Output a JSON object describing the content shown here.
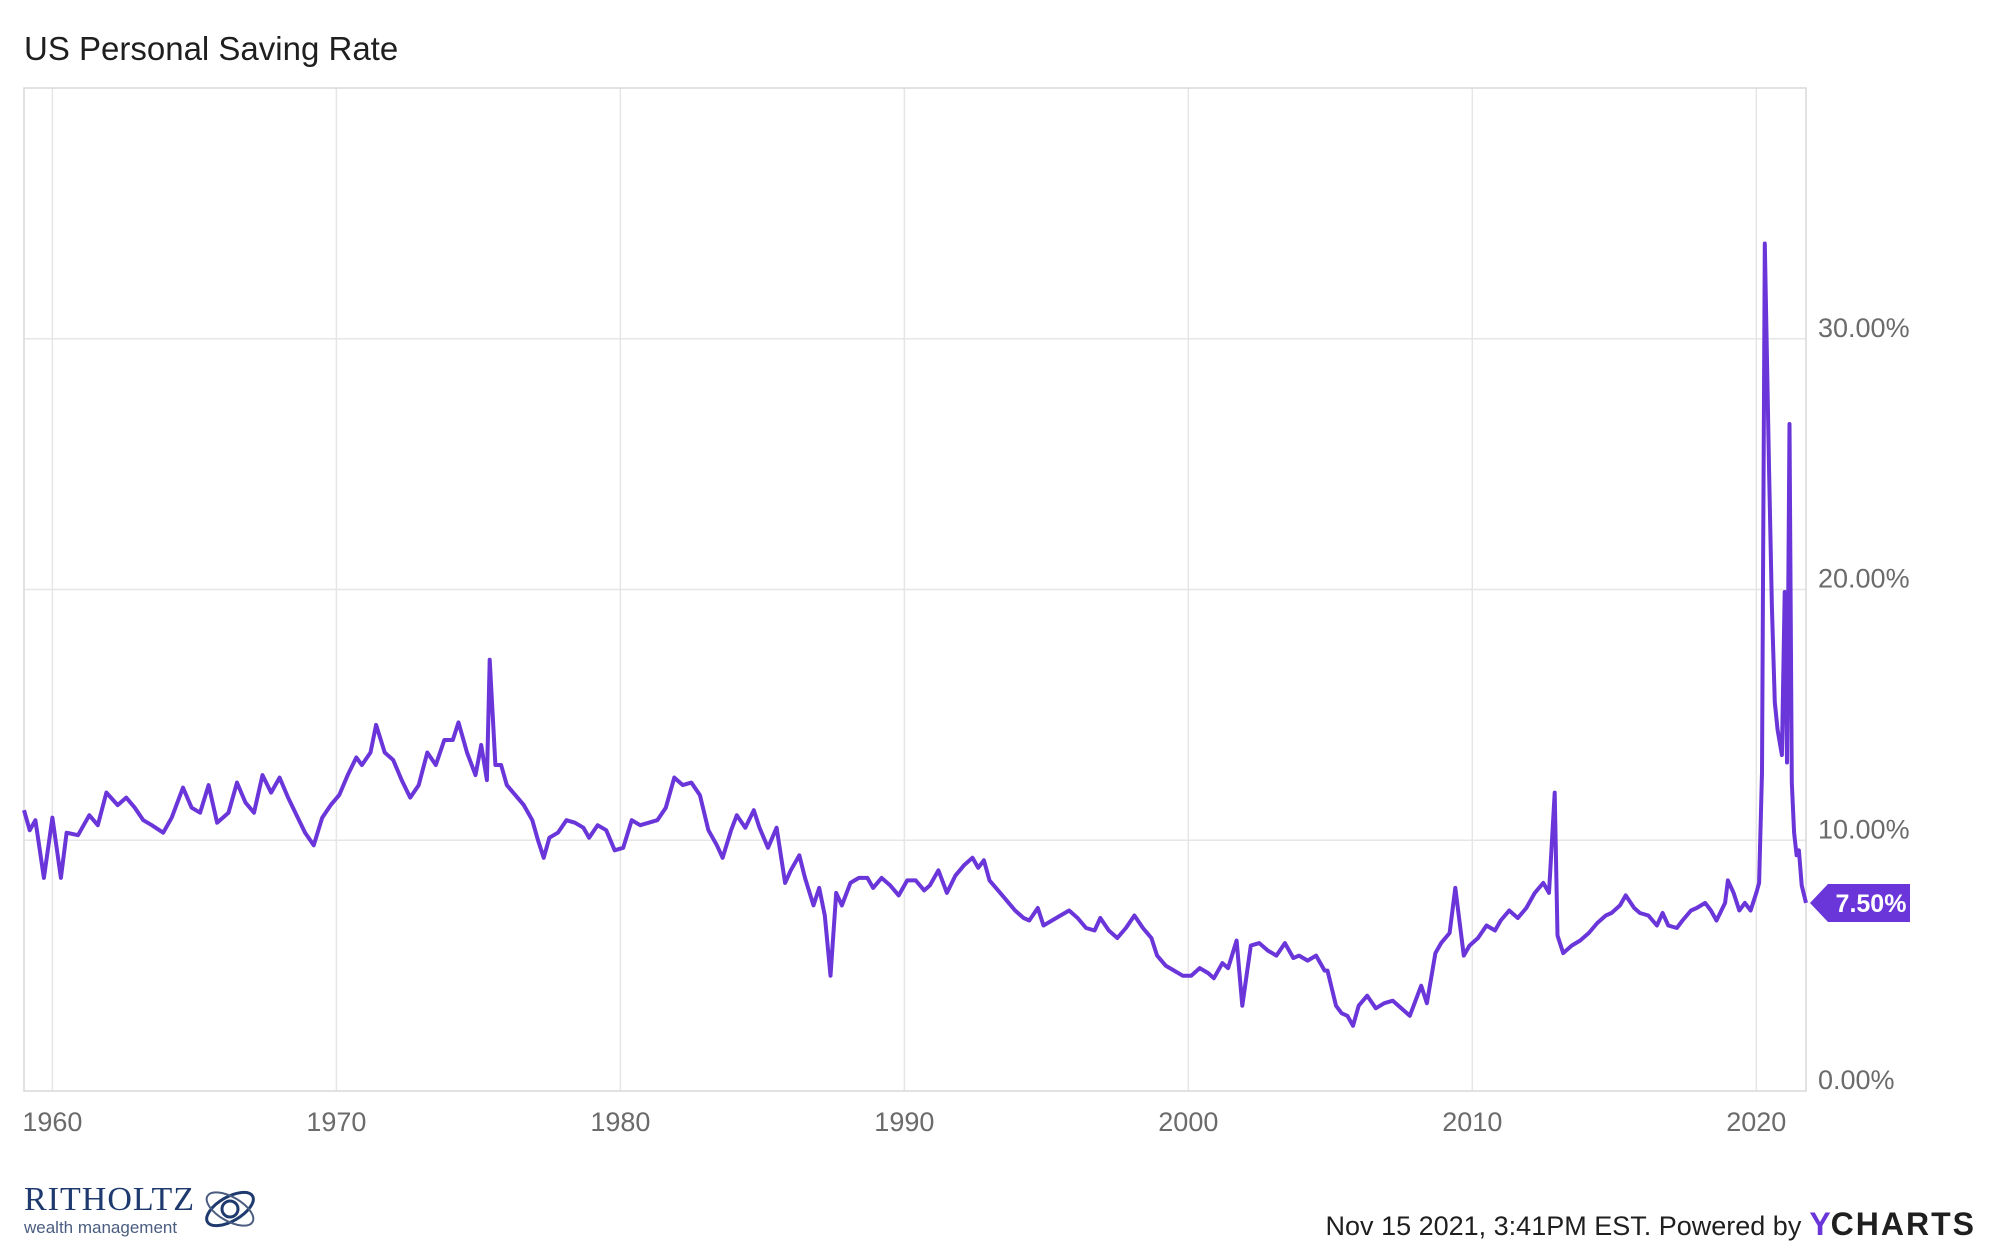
{
  "title": "US Personal Saving Rate",
  "footer": {
    "timestamp": "Nov 15 2021, 3:41PM EST. Powered by",
    "brand_y": "Y",
    "brand_rest": "CHARTS",
    "logo_name": "RITHOLTZ",
    "logo_sub": "wealth management"
  },
  "colors": {
    "line": "#6a35d9",
    "grid": "#e6e6e6",
    "frame": "#d9d9d9"
  },
  "chart_data": {
    "type": "line",
    "title": "US Personal Saving Rate",
    "xlabel": "",
    "ylabel": "",
    "xlim": [
      1959.0,
      2021.75
    ],
    "ylim": [
      0,
      40
    ],
    "x_ticks": [
      {
        "value": 1960,
        "label": "1960"
      },
      {
        "value": 1970,
        "label": "1970"
      },
      {
        "value": 1980,
        "label": "1980"
      },
      {
        "value": 1990,
        "label": "1990"
      },
      {
        "value": 2000,
        "label": "2000"
      },
      {
        "value": 2010,
        "label": "2010"
      },
      {
        "value": 2020,
        "label": "2020"
      }
    ],
    "y_ticks": [
      {
        "value": 0,
        "label": "0.00%"
      },
      {
        "value": 10,
        "label": "10.00%"
      },
      {
        "value": 20,
        "label": "20.00%"
      },
      {
        "value": 30,
        "label": "30.00%"
      }
    ],
    "grid": true,
    "last_value_label": "7.50%",
    "series": [
      {
        "values": [
          [
            1959.0,
            11.2
          ],
          [
            1959.2,
            10.4
          ],
          [
            1959.4,
            10.8
          ],
          [
            1959.7,
            8.5
          ],
          [
            1960.0,
            10.9
          ],
          [
            1960.3,
            8.5
          ],
          [
            1960.5,
            10.3
          ],
          [
            1960.9,
            10.2
          ],
          [
            1961.3,
            11.0
          ],
          [
            1961.6,
            10.6
          ],
          [
            1961.9,
            11.9
          ],
          [
            1962.3,
            11.4
          ],
          [
            1962.6,
            11.7
          ],
          [
            1962.9,
            11.3
          ],
          [
            1963.2,
            10.8
          ],
          [
            1963.5,
            10.6
          ],
          [
            1963.9,
            10.3
          ],
          [
            1964.2,
            10.9
          ],
          [
            1964.6,
            12.1
          ],
          [
            1964.9,
            11.3
          ],
          [
            1965.2,
            11.1
          ],
          [
            1965.5,
            12.2
          ],
          [
            1965.8,
            10.7
          ],
          [
            1966.2,
            11.1
          ],
          [
            1966.5,
            12.3
          ],
          [
            1966.8,
            11.5
          ],
          [
            1967.1,
            11.1
          ],
          [
            1967.4,
            12.6
          ],
          [
            1967.7,
            11.9
          ],
          [
            1968.0,
            12.5
          ],
          [
            1968.3,
            11.7
          ],
          [
            1968.6,
            11.0
          ],
          [
            1968.9,
            10.3
          ],
          [
            1969.2,
            9.8
          ],
          [
            1969.5,
            10.9
          ],
          [
            1969.8,
            11.4
          ],
          [
            1970.1,
            11.8
          ],
          [
            1970.4,
            12.6
          ],
          [
            1970.7,
            13.3
          ],
          [
            1970.9,
            13.0
          ],
          [
            1971.2,
            13.5
          ],
          [
            1971.4,
            14.6
          ],
          [
            1971.7,
            13.5
          ],
          [
            1972.0,
            13.2
          ],
          [
            1972.3,
            12.4
          ],
          [
            1972.6,
            11.7
          ],
          [
            1972.9,
            12.2
          ],
          [
            1973.2,
            13.5
          ],
          [
            1973.5,
            13.0
          ],
          [
            1973.8,
            14.0
          ],
          [
            1974.1,
            14.0
          ],
          [
            1974.3,
            14.7
          ],
          [
            1974.6,
            13.5
          ],
          [
            1974.9,
            12.6
          ],
          [
            1975.1,
            13.8
          ],
          [
            1975.3,
            12.4
          ],
          [
            1975.4,
            17.2
          ],
          [
            1975.6,
            13.0
          ],
          [
            1975.8,
            13.0
          ],
          [
            1976.0,
            12.2
          ],
          [
            1976.3,
            11.8
          ],
          [
            1976.6,
            11.4
          ],
          [
            1976.9,
            10.8
          ],
          [
            1977.1,
            10.0
          ],
          [
            1977.3,
            9.3
          ],
          [
            1977.5,
            10.1
          ],
          [
            1977.8,
            10.3
          ],
          [
            1978.1,
            10.8
          ],
          [
            1978.4,
            10.7
          ],
          [
            1978.7,
            10.5
          ],
          [
            1978.9,
            10.1
          ],
          [
            1979.2,
            10.6
          ],
          [
            1979.5,
            10.4
          ],
          [
            1979.8,
            9.6
          ],
          [
            1980.1,
            9.7
          ],
          [
            1980.4,
            10.8
          ],
          [
            1980.7,
            10.6
          ],
          [
            1981.0,
            10.7
          ],
          [
            1981.3,
            10.8
          ],
          [
            1981.6,
            11.3
          ],
          [
            1981.9,
            12.5
          ],
          [
            1982.2,
            12.2
          ],
          [
            1982.5,
            12.3
          ],
          [
            1982.8,
            11.8
          ],
          [
            1983.1,
            10.4
          ],
          [
            1983.4,
            9.8
          ],
          [
            1983.6,
            9.3
          ],
          [
            1983.9,
            10.4
          ],
          [
            1984.1,
            11.0
          ],
          [
            1984.4,
            10.5
          ],
          [
            1984.7,
            11.2
          ],
          [
            1984.9,
            10.5
          ],
          [
            1985.2,
            9.7
          ],
          [
            1985.5,
            10.5
          ],
          [
            1985.8,
            8.3
          ],
          [
            1986.0,
            8.8
          ],
          [
            1986.3,
            9.4
          ],
          [
            1986.5,
            8.5
          ],
          [
            1986.8,
            7.4
          ],
          [
            1987.0,
            8.1
          ],
          [
            1987.2,
            7.0
          ],
          [
            1987.4,
            4.6
          ],
          [
            1987.6,
            7.9
          ],
          [
            1987.8,
            7.4
          ],
          [
            1988.1,
            8.3
          ],
          [
            1988.4,
            8.5
          ],
          [
            1988.7,
            8.5
          ],
          [
            1988.9,
            8.1
          ],
          [
            1989.2,
            8.5
          ],
          [
            1989.5,
            8.2
          ],
          [
            1989.8,
            7.8
          ],
          [
            1990.1,
            8.4
          ],
          [
            1990.4,
            8.4
          ],
          [
            1990.7,
            8.0
          ],
          [
            1990.9,
            8.2
          ],
          [
            1991.2,
            8.8
          ],
          [
            1991.5,
            7.9
          ],
          [
            1991.8,
            8.6
          ],
          [
            1992.1,
            9.0
          ],
          [
            1992.4,
            9.3
          ],
          [
            1992.6,
            8.9
          ],
          [
            1992.8,
            9.2
          ],
          [
            1993.0,
            8.4
          ],
          [
            1993.3,
            8.0
          ],
          [
            1993.6,
            7.6
          ],
          [
            1993.9,
            7.2
          ],
          [
            1994.2,
            6.9
          ],
          [
            1994.4,
            6.8
          ],
          [
            1994.7,
            7.3
          ],
          [
            1994.9,
            6.6
          ],
          [
            1995.2,
            6.8
          ],
          [
            1995.5,
            7.0
          ],
          [
            1995.8,
            7.2
          ],
          [
            1996.1,
            6.9
          ],
          [
            1996.4,
            6.5
          ],
          [
            1996.7,
            6.4
          ],
          [
            1996.9,
            6.9
          ],
          [
            1997.2,
            6.4
          ],
          [
            1997.5,
            6.1
          ],
          [
            1997.8,
            6.5
          ],
          [
            1998.1,
            7.0
          ],
          [
            1998.4,
            6.5
          ],
          [
            1998.7,
            6.1
          ],
          [
            1998.9,
            5.4
          ],
          [
            1999.2,
            5.0
          ],
          [
            1999.5,
            4.8
          ],
          [
            1999.8,
            4.6
          ],
          [
            2000.1,
            4.6
          ],
          [
            2000.4,
            4.9
          ],
          [
            2000.7,
            4.7
          ],
          [
            2000.9,
            4.5
          ],
          [
            2001.2,
            5.1
          ],
          [
            2001.4,
            4.9
          ],
          [
            2001.7,
            6.0
          ],
          [
            2001.9,
            3.4
          ],
          [
            2002.2,
            5.8
          ],
          [
            2002.5,
            5.9
          ],
          [
            2002.8,
            5.6
          ],
          [
            2003.1,
            5.4
          ],
          [
            2003.4,
            5.9
          ],
          [
            2003.7,
            5.3
          ],
          [
            2003.9,
            5.4
          ],
          [
            2004.2,
            5.2
          ],
          [
            2004.5,
            5.4
          ],
          [
            2004.8,
            4.8
          ],
          [
            2004.9,
            4.8
          ],
          [
            2005.2,
            3.4
          ],
          [
            2005.4,
            3.1
          ],
          [
            2005.6,
            3.0
          ],
          [
            2005.8,
            2.6
          ],
          [
            2006.0,
            3.4
          ],
          [
            2006.3,
            3.8
          ],
          [
            2006.6,
            3.3
          ],
          [
            2006.9,
            3.5
          ],
          [
            2007.2,
            3.6
          ],
          [
            2007.5,
            3.3
          ],
          [
            2007.8,
            3.0
          ],
          [
            2008.0,
            3.6
          ],
          [
            2008.2,
            4.2
          ],
          [
            2008.4,
            3.5
          ],
          [
            2008.7,
            5.5
          ],
          [
            2008.9,
            5.9
          ],
          [
            2009.2,
            6.3
          ],
          [
            2009.4,
            8.1
          ],
          [
            2009.7,
            5.4
          ],
          [
            2009.9,
            5.8
          ],
          [
            2010.2,
            6.1
          ],
          [
            2010.5,
            6.6
          ],
          [
            2010.8,
            6.4
          ],
          [
            2011.0,
            6.8
          ],
          [
            2011.3,
            7.2
          ],
          [
            2011.6,
            6.9
          ],
          [
            2011.9,
            7.3
          ],
          [
            2012.2,
            7.9
          ],
          [
            2012.5,
            8.3
          ],
          [
            2012.7,
            7.9
          ],
          [
            2012.9,
            11.9
          ],
          [
            2013.0,
            6.2
          ],
          [
            2013.2,
            5.5
          ],
          [
            2013.5,
            5.8
          ],
          [
            2013.8,
            6.0
          ],
          [
            2014.1,
            6.3
          ],
          [
            2014.4,
            6.7
          ],
          [
            2014.7,
            7.0
          ],
          [
            2014.9,
            7.1
          ],
          [
            2015.2,
            7.4
          ],
          [
            2015.4,
            7.8
          ],
          [
            2015.7,
            7.3
          ],
          [
            2015.9,
            7.1
          ],
          [
            2016.2,
            7.0
          ],
          [
            2016.5,
            6.6
          ],
          [
            2016.7,
            7.1
          ],
          [
            2016.9,
            6.6
          ],
          [
            2017.2,
            6.5
          ],
          [
            2017.4,
            6.8
          ],
          [
            2017.7,
            7.2
          ],
          [
            2017.9,
            7.3
          ],
          [
            2018.2,
            7.5
          ],
          [
            2018.4,
            7.2
          ],
          [
            2018.6,
            6.8
          ],
          [
            2018.9,
            7.5
          ],
          [
            2019.0,
            8.4
          ],
          [
            2019.2,
            7.9
          ],
          [
            2019.4,
            7.2
          ],
          [
            2019.6,
            7.5
          ],
          [
            2019.8,
            7.2
          ],
          [
            2020.0,
            7.9
          ],
          [
            2020.1,
            8.3
          ],
          [
            2020.2,
            12.7
          ],
          [
            2020.3,
            33.8
          ],
          [
            2020.45,
            24.7
          ],
          [
            2020.55,
            19.3
          ],
          [
            2020.65,
            15.5
          ],
          [
            2020.75,
            14.4
          ],
          [
            2020.9,
            13.4
          ],
          [
            2021.0,
            19.9
          ],
          [
            2021.08,
            13.1
          ],
          [
            2021.17,
            26.6
          ],
          [
            2021.25,
            12.3
          ],
          [
            2021.33,
            10.3
          ],
          [
            2021.42,
            9.4
          ],
          [
            2021.5,
            9.6
          ],
          [
            2021.6,
            8.2
          ],
          [
            2021.75,
            7.5
          ]
        ]
      }
    ]
  }
}
